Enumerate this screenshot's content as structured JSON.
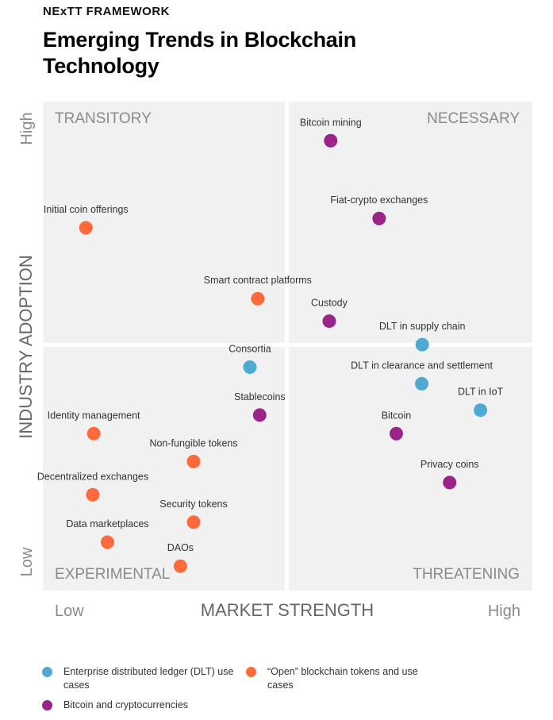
{
  "header": {
    "eyebrow": "NExTT FRAMEWORK",
    "title": "Emerging Trends in Blockchain Technology"
  },
  "colors": {
    "enterprise": "#4eaad3",
    "open": "#ff6a3a",
    "bitcoin": "#9a2488",
    "quadrant_bg": "#f1f1f1",
    "axis_text": "#8a8a8a"
  },
  "chart_data": {
    "type": "scatter",
    "xlabel": "MARKET STRENGTH",
    "ylabel": "INDUSTRY ADOPTION",
    "x_low": "Low",
    "x_high": "High",
    "y_low": "Low",
    "y_high": "High",
    "xlim": [
      0,
      100
    ],
    "ylim": [
      0,
      100
    ],
    "grid": false,
    "quadrants": {
      "top_left": "TRANSITORY",
      "top_right": "NECESSARY",
      "bottom_left": "EXPERIMENTAL",
      "bottom_right": "THREATENING"
    },
    "series": [
      {
        "name": "Enterprise distributed ledger (DLT) use cases",
        "color_key": "enterprise",
        "points": [
          {
            "label": "Consortia",
            "x": 42.3,
            "y": 45.7
          },
          {
            "label": "DLT in supply chain",
            "x": 77.5,
            "y": 50.3
          },
          {
            "label": "DLT in clearance and settlement",
            "x": 77.4,
            "y": 42.3
          },
          {
            "label": "DLT in IoT",
            "x": 89.4,
            "y": 36.9
          }
        ]
      },
      {
        "name": "“Open” blockchain tokens and use cases",
        "color_key": "open",
        "points": [
          {
            "label": "Initial coin offerings",
            "x": 8.8,
            "y": 74.2
          },
          {
            "label": "Smart contract platforms",
            "x": 43.9,
            "y": 59.7
          },
          {
            "label": "Identity management",
            "x": 10.4,
            "y": 32.1
          },
          {
            "label": "Non-fungible tokens",
            "x": 30.8,
            "y": 26.4
          },
          {
            "label": "Decentralized exchanges",
            "x": 10.2,
            "y": 19.6
          },
          {
            "label": "Security tokens",
            "x": 30.8,
            "y": 14.0
          },
          {
            "label": "Data marketplaces",
            "x": 13.2,
            "y": 9.9
          },
          {
            "label": "DAOs",
            "x": 28.1,
            "y": 5.0
          }
        ]
      },
      {
        "name": "Bitcoin and cryptocurrencies",
        "color_key": "bitcoin",
        "points": [
          {
            "label": "Bitcoin mining",
            "x": 58.8,
            "y": 92.0
          },
          {
            "label": "Fiat-crypto exchanges",
            "x": 68.7,
            "y": 76.1
          },
          {
            "label": "Custody",
            "x": 58.5,
            "y": 55.1
          },
          {
            "label": "Stablecoins",
            "x": 44.3,
            "y": 35.9
          },
          {
            "label": "Bitcoin",
            "x": 72.2,
            "y": 32.1
          },
          {
            "label": "Privacy coins",
            "x": 83.1,
            "y": 22.1
          }
        ]
      }
    ]
  }
}
